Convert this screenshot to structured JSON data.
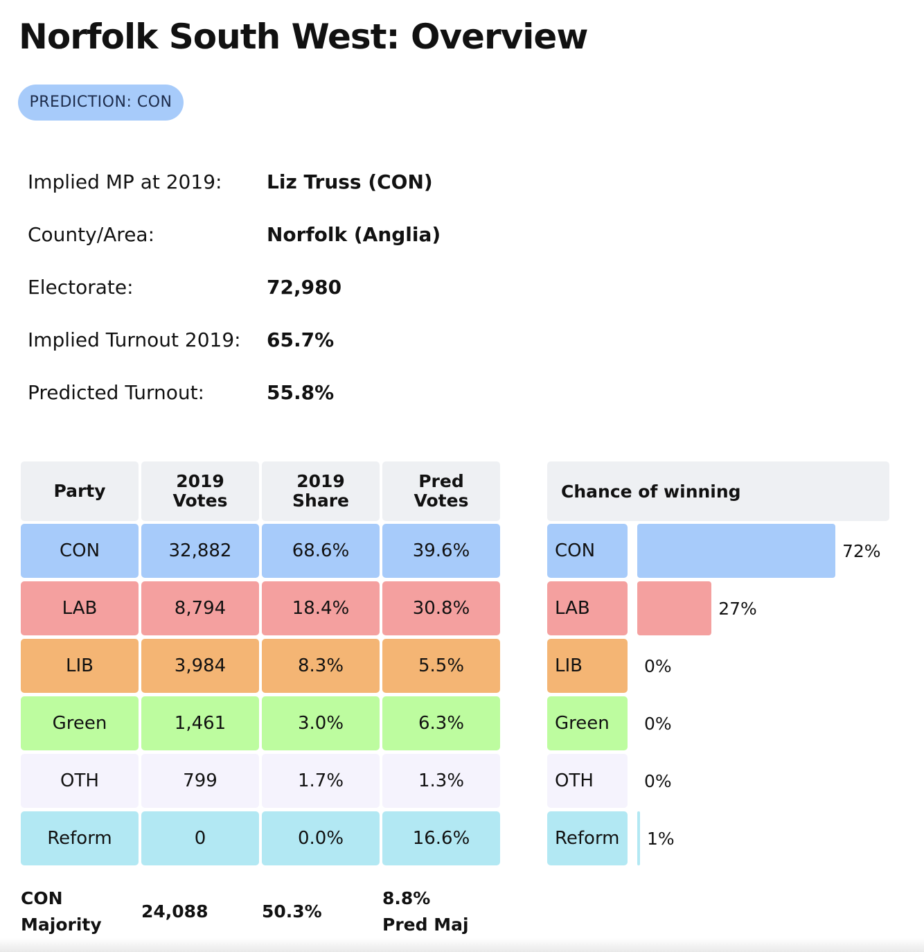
{
  "title": "Norfolk South West: Overview",
  "prediction_badge": "PREDICTION: CON",
  "info": [
    {
      "label": "Implied MP at 2019:",
      "value": "Liz Truss  (CON)"
    },
    {
      "label": "County/Area:",
      "value": "Norfolk (Anglia)"
    },
    {
      "label": "Electorate:",
      "value": "72,980"
    },
    {
      "label": "Implied Turnout 2019:",
      "value": "65.7%"
    },
    {
      "label": "Predicted Turnout:",
      "value": "55.8%"
    }
  ],
  "table": {
    "headers": [
      [
        "Party"
      ],
      [
        "2019",
        "Votes"
      ],
      [
        "2019",
        "Share"
      ],
      [
        "Pred",
        "Votes"
      ]
    ],
    "rows": [
      {
        "party": "CON",
        "votes_2019": "32,882",
        "share_2019": "68.6%",
        "pred_votes": "39.6%",
        "color": "#a7cbfa"
      },
      {
        "party": "LAB",
        "votes_2019": "8,794",
        "share_2019": "18.4%",
        "pred_votes": "30.8%",
        "color": "#f4a09f"
      },
      {
        "party": "LIB",
        "votes_2019": "3,984",
        "share_2019": "8.3%",
        "pred_votes": "5.5%",
        "color": "#f4b574"
      },
      {
        "party": "Green",
        "votes_2019": "1,461",
        "share_2019": "3.0%",
        "pred_votes": "6.3%",
        "color": "#bdfc9f"
      },
      {
        "party": "OTH",
        "votes_2019": "799",
        "share_2019": "1.7%",
        "pred_votes": "1.3%",
        "color": "#f5f3fd"
      },
      {
        "party": "Reform",
        "votes_2019": "0",
        "share_2019": "0.0%",
        "pred_votes": "16.6%",
        "color": "#b2e8f3"
      }
    ],
    "footer": [
      [
        "CON",
        "Majority"
      ],
      [
        "24,088"
      ],
      [
        "50.3%"
      ],
      [
        "8.8%",
        "Pred Maj"
      ]
    ]
  },
  "chance": {
    "header": "Chance of winning",
    "rows": [
      {
        "party": "CON",
        "pct_label": "72%",
        "value": 72,
        "color": "#a7cbfa"
      },
      {
        "party": "LAB",
        "pct_label": "27%",
        "value": 27,
        "color": "#f4a09f"
      },
      {
        "party": "LIB",
        "pct_label": "0%",
        "value": 0,
        "color": "#f4b574"
      },
      {
        "party": "Green",
        "pct_label": "0%",
        "value": 0,
        "color": "#bdfc9f"
      },
      {
        "party": "OTH",
        "pct_label": "0%",
        "value": 0,
        "color": "#f5f3fd"
      },
      {
        "party": "Reform",
        "pct_label": "1%",
        "value": 1,
        "color": "#b2e8f3"
      }
    ]
  }
}
